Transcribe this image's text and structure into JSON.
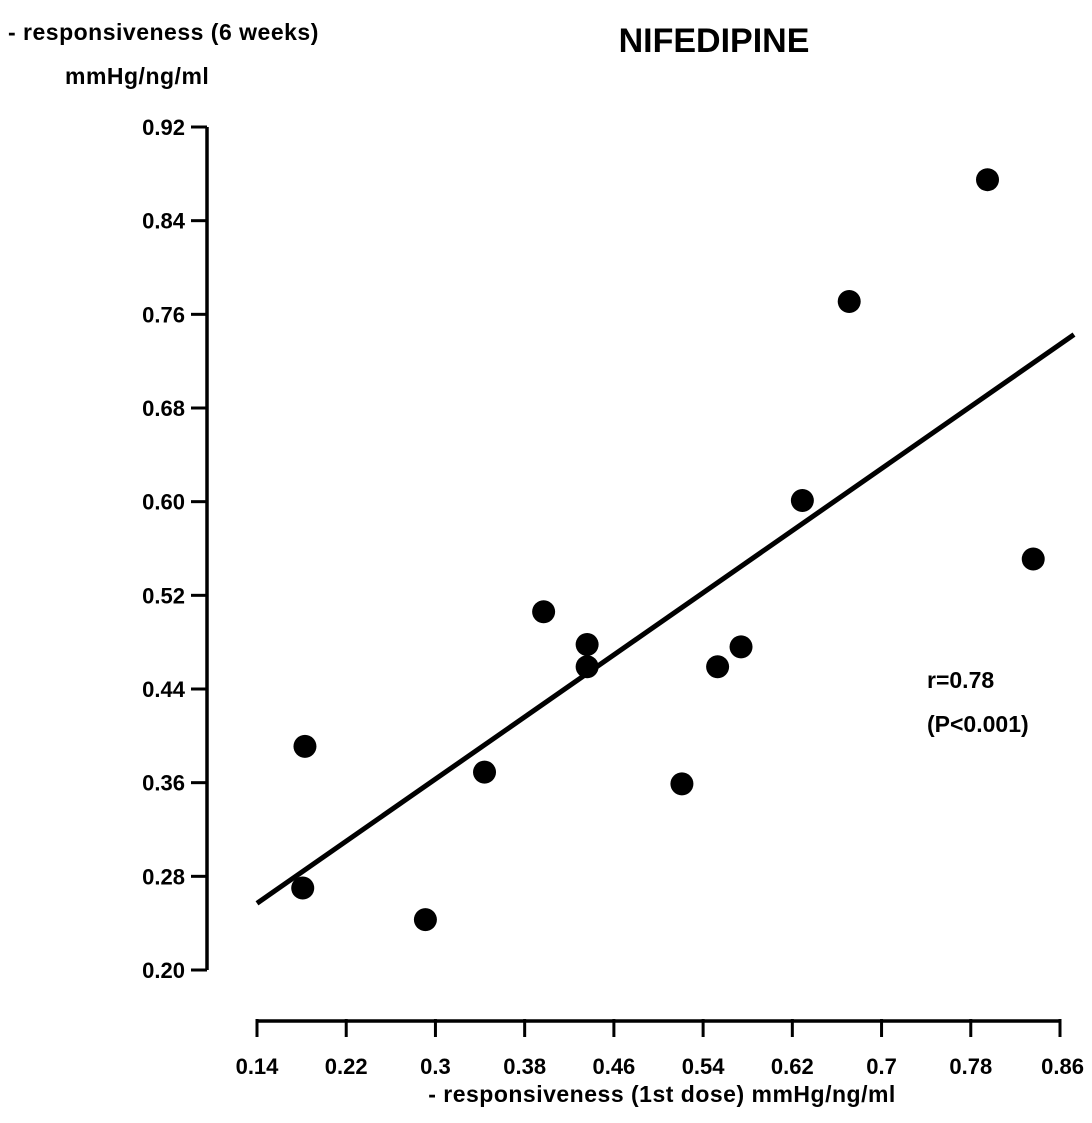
{
  "chart_data": {
    "type": "scatter",
    "title": "NIFEDIPINE",
    "ylabel_line1": "- responsiveness (6 weeks)",
    "ylabel_line2": "mmHg/ng/ml",
    "xlabel": "- responsiveness (1st dose) mmHg/ng/ml",
    "x_ticks": [
      "0.14",
      "0.22",
      "0.3",
      "0.38",
      "0.46",
      "0.54",
      "0.62",
      "0.7",
      "0.78",
      "0.86"
    ],
    "y_ticks": [
      "0.20",
      "0.28",
      "0.36",
      "0.44",
      "0.52",
      "0.60",
      "0.68",
      "0.76",
      "0.84",
      "0.92"
    ],
    "xlim": [
      0.14,
      0.86
    ],
    "ylim": [
      0.2,
      0.92
    ],
    "points": [
      {
        "x": 0.181,
        "y": 0.27
      },
      {
        "x": 0.183,
        "y": 0.391
      },
      {
        "x": 0.291,
        "y": 0.243
      },
      {
        "x": 0.344,
        "y": 0.369
      },
      {
        "x": 0.397,
        "y": 0.506
      },
      {
        "x": 0.436,
        "y": 0.478
      },
      {
        "x": 0.436,
        "y": 0.459
      },
      {
        "x": 0.521,
        "y": 0.359
      },
      {
        "x": 0.553,
        "y": 0.459
      },
      {
        "x": 0.574,
        "y": 0.476
      },
      {
        "x": 0.629,
        "y": 0.601
      },
      {
        "x": 0.671,
        "y": 0.771
      },
      {
        "x": 0.795,
        "y": 0.875
      },
      {
        "x": 0.836,
        "y": 0.551
      }
    ],
    "fit_line": {
      "x": [
        0.14,
        0.86
      ],
      "y": [
        0.257,
        0.735
      ]
    },
    "annotation": {
      "r": "r=0.78",
      "p": "(P<0.001)"
    },
    "grid": false,
    "legend": "none"
  }
}
